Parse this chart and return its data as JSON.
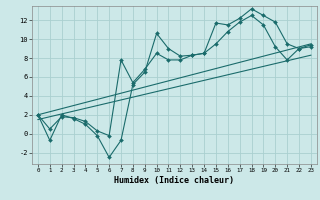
{
  "xlabel": "Humidex (Indice chaleur)",
  "bg_color": "#cce8e8",
  "grid_color": "#aad0d0",
  "line_color": "#1a6b6b",
  "xlim": [
    -0.5,
    23.5
  ],
  "ylim": [
    -3.2,
    13.5
  ],
  "yticks": [
    -2,
    0,
    2,
    4,
    6,
    8,
    10,
    12
  ],
  "xticks": [
    0,
    1,
    2,
    3,
    4,
    5,
    6,
    7,
    8,
    9,
    10,
    11,
    12,
    13,
    14,
    15,
    16,
    17,
    18,
    19,
    20,
    21,
    22,
    23
  ],
  "series1_x": [
    0,
    1,
    2,
    3,
    4,
    5,
    6,
    7,
    8,
    9,
    10,
    11,
    12,
    13,
    14,
    15,
    16,
    17,
    18,
    19,
    20,
    21,
    22,
    23
  ],
  "series1_y": [
    2.0,
    -0.7,
    2.0,
    1.6,
    1.0,
    -0.2,
    -2.5,
    -0.7,
    5.2,
    6.5,
    10.6,
    9.0,
    8.2,
    8.3,
    8.5,
    11.7,
    11.5,
    12.2,
    13.2,
    12.5,
    11.8,
    9.5,
    9.0,
    9.4
  ],
  "series2_x": [
    0,
    1,
    2,
    3,
    4,
    5,
    6,
    7,
    8,
    9,
    10,
    11,
    12,
    13,
    14,
    15,
    16,
    17,
    18,
    19,
    20,
    21,
    22,
    23
  ],
  "series2_y": [
    2.0,
    0.5,
    1.8,
    1.7,
    1.3,
    0.3,
    -0.2,
    7.8,
    5.4,
    6.8,
    8.5,
    7.8,
    7.8,
    8.3,
    8.5,
    9.5,
    10.8,
    11.8,
    12.5,
    11.5,
    9.2,
    7.8,
    9.0,
    9.2
  ],
  "line1_x": [
    0,
    23
  ],
  "line1_y": [
    2.0,
    9.5
  ],
  "line2_x": [
    0,
    23
  ],
  "line2_y": [
    1.5,
    8.3
  ]
}
